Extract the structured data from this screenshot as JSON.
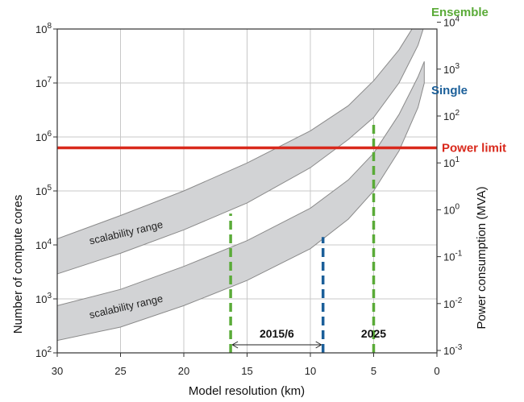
{
  "chart_data": {
    "type": "area",
    "xlabel": "Model resolution (km)",
    "ylabel": "Number of compute cores",
    "y2label": "Power consumption (MVA)",
    "xlim": [
      30,
      0
    ],
    "x_ticks": [
      "30",
      "25",
      "20",
      "15",
      "10",
      "5",
      "0"
    ],
    "x_tick_values": [
      30,
      25,
      20,
      15,
      10,
      5,
      0
    ],
    "y_scale": "log",
    "ylim": [
      100,
      100000000
    ],
    "y_ticks": [
      {
        "value": 100,
        "base": "10",
        "exp": "2"
      },
      {
        "value": 1000,
        "base": "10",
        "exp": "3"
      },
      {
        "value": 10000,
        "base": "10",
        "exp": "4"
      },
      {
        "value": 100000,
        "base": "10",
        "exp": "5"
      },
      {
        "value": 1000000,
        "base": "10",
        "exp": "6"
      },
      {
        "value": 10000000,
        "base": "10",
        "exp": "7"
      },
      {
        "value": 100000000,
        "base": "10",
        "exp": "8"
      }
    ],
    "y2_scale": "log",
    "y2_ticks": [
      {
        "value": 0.001,
        "base": "10",
        "exp": "-3"
      },
      {
        "value": 0.01,
        "base": "10",
        "exp": "-2"
      },
      {
        "value": 0.1,
        "base": "10",
        "exp": "-1"
      },
      {
        "value": 1,
        "base": "10",
        "exp": "0"
      },
      {
        "value": 10,
        "base": "10",
        "exp": "1"
      },
      {
        "value": 100,
        "base": "10",
        "exp": "2"
      },
      {
        "value": 1000,
        "base": "10",
        "exp": "3"
      },
      {
        "value": 10000,
        "base": "10",
        "exp": "4"
      }
    ],
    "grid": true,
    "bands": [
      {
        "label": "scalability range",
        "color": "#d2d3d5",
        "x": [
          30,
          25,
          20,
          15,
          10,
          7,
          5,
          3,
          1.5,
          1
        ],
        "lower": [
          2900,
          7000,
          19000,
          60000,
          270000,
          900000,
          2300000,
          10000000,
          50000000,
          115000000
        ],
        "upper": [
          13000,
          35000,
          100000,
          330000,
          1300000,
          3800000,
          11000000,
          41000000,
          150000000,
          210000000
        ]
      },
      {
        "label": "scalability range",
        "color": "#d2d3d5",
        "x": [
          30,
          25,
          20,
          15,
          10,
          7,
          5,
          3,
          1.5,
          1
        ],
        "lower": [
          170,
          300,
          750,
          2200,
          8500,
          30000,
          100000,
          550000,
          3500000,
          10000000
        ],
        "upper": [
          750,
          1500,
          4000,
          12000,
          48000,
          160000,
          500000,
          2600000,
          13000000,
          25000000
        ]
      }
    ],
    "hlines": [
      {
        "label": "Power limit",
        "y": 630000,
        "color": "#d9291c"
      }
    ],
    "vlines": [
      {
        "x": 16.3,
        "y_top": 38000,
        "color": "#5aab38"
      },
      {
        "x": 9.0,
        "y_top": 14000,
        "color": "#1b5f99"
      },
      {
        "x": 5.0,
        "y_top": 2000000,
        "color": "#5aab38"
      }
    ],
    "callouts": [
      {
        "label": "Ensemble",
        "color": "#5aab38"
      },
      {
        "label": "Single",
        "color": "#1b5f99"
      }
    ],
    "annotations": [
      {
        "text": "2015/6",
        "x_from": 16.3,
        "x_to": 9.0
      },
      {
        "text": "2025",
        "x": 5.0
      }
    ]
  }
}
